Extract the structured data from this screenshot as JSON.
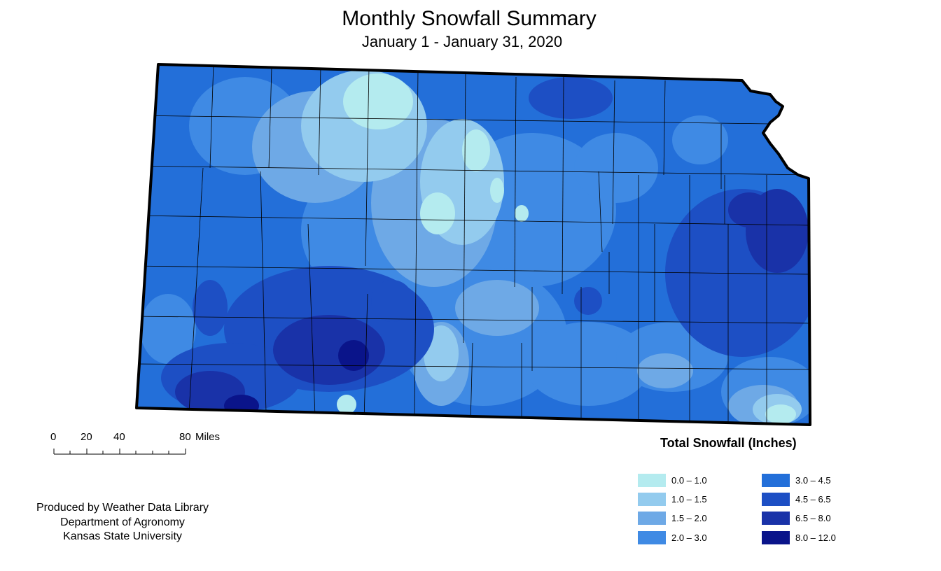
{
  "title": "Monthly Snowfall Summary",
  "subtitle": "January 1 - January 31, 2020",
  "scale_bar": {
    "ticks": [
      "0",
      "20",
      "40",
      "80"
    ],
    "unit": "Miles"
  },
  "credits": [
    "Produced by Weather Data Library",
    "Department of Agronomy",
    "Kansas State University"
  ],
  "legend": {
    "title": "Total Snowfall (Inches)",
    "items": [
      {
        "label": "0.0 – 1.0",
        "color": "#b4ebef"
      },
      {
        "label": "1.0 – 1.5",
        "color": "#93cbee"
      },
      {
        "label": "1.5 – 2.0",
        "color": "#6ea9e6"
      },
      {
        "label": "2.0 – 3.0",
        "color": "#3f8ae4"
      },
      {
        "label": "3.0 – 4.5",
        "color": "#236fd9"
      },
      {
        "label": "4.5 – 6.5",
        "color": "#1d4fc4"
      },
      {
        "label": "6.5 – 8.0",
        "color": "#1932a8"
      },
      {
        "label": "8.0 – 12.0",
        "color": "#0a148a"
      }
    ]
  }
}
